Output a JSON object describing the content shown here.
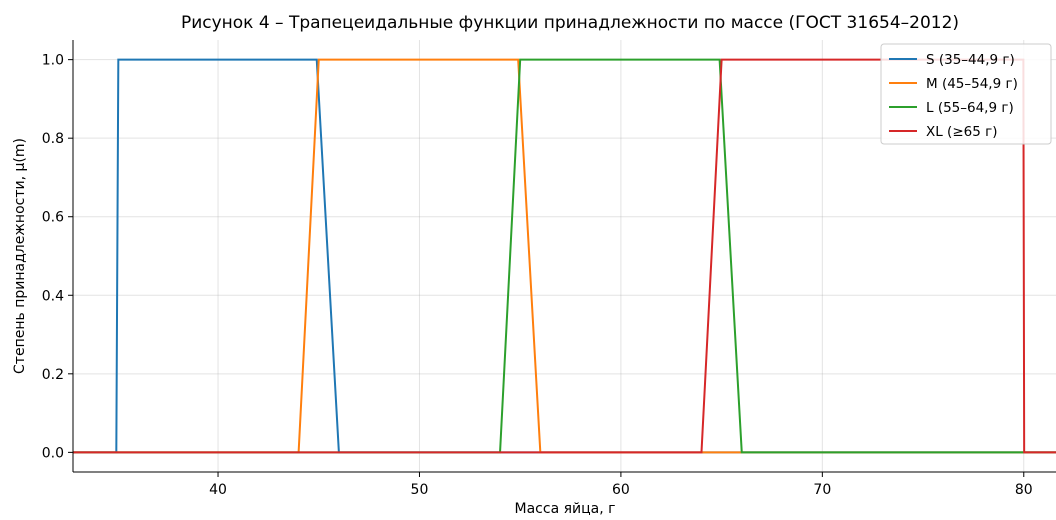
{
  "chart_data": {
    "type": "line",
    "title": "Рисунок 4 – Трапецеидальные функции принадлежности по массе (ГОСТ 31654–2012)",
    "xlabel": "Масса яйца, г",
    "ylabel": "Степень принадлежности, μ(m)",
    "xlim": [
      32.8,
      81.6
    ],
    "ylim": [
      -0.05,
      1.05
    ],
    "xticks": [
      40,
      50,
      60,
      70,
      80
    ],
    "xtick_labels": [
      "40",
      "50",
      "60",
      "70",
      "80"
    ],
    "yticks": [
      0.0,
      0.2,
      0.4,
      0.6,
      0.8,
      1.0
    ],
    "ytick_labels": [
      "0.0",
      "0.2",
      "0.4",
      "0.6",
      "0.8",
      "1.0"
    ],
    "grid": true,
    "legend_position": "top-right",
    "series": [
      {
        "name": "S (35–44,9 г)",
        "color": "#1f77b4",
        "x": [
          32.8,
          34.95,
          35.05,
          44.9,
          46.0,
          81.6
        ],
        "y": [
          0,
          0,
          1,
          1,
          0,
          0
        ]
      },
      {
        "name": "M (45–54,9 г)",
        "color": "#ff7f0e",
        "x": [
          32.8,
          44.0,
          45.0,
          54.9,
          56.0,
          81.6
        ],
        "y": [
          0,
          0,
          1,
          1,
          0,
          0
        ]
      },
      {
        "name": "L (55–64,9 г)",
        "color": "#2ca02c",
        "x": [
          32.8,
          54.0,
          55.0,
          64.9,
          66.0,
          81.6
        ],
        "y": [
          0,
          0,
          1,
          1,
          0,
          0
        ]
      },
      {
        "name": "XL (≥65 г)",
        "color": "#d62728",
        "x": [
          32.8,
          64.0,
          65.0,
          79.98,
          80.02,
          81.6
        ],
        "y": [
          0,
          0,
          1,
          1,
          0,
          0
        ]
      }
    ]
  }
}
